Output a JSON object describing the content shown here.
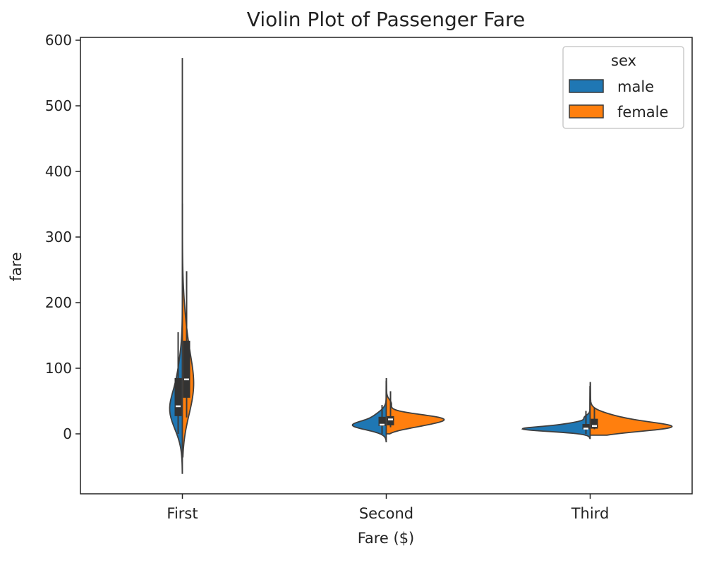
{
  "chart_data": {
    "type": "violin",
    "title": "Violin Plot of Passenger Fare",
    "xlabel": "Fare ($)",
    "ylabel": "fare",
    "categories": [
      "First",
      "Second",
      "Third"
    ],
    "ylim": [
      -90,
      605
    ],
    "yticks": [
      0,
      100,
      200,
      300,
      400,
      500,
      600
    ],
    "grid": false,
    "split": true,
    "legend": {
      "title": "sex",
      "placement": "top-right",
      "entries": [
        {
          "name": "male",
          "color": "#1f77b4"
        },
        {
          "name": "female",
          "color": "#ff7f0e"
        }
      ]
    },
    "series": [
      {
        "name": "male",
        "color": "#1f77b4",
        "groups": [
          {
            "category": "First",
            "min": 0,
            "q1": 27,
            "median": 42,
            "q3": 85,
            "max": 155,
            "kde_min": -60,
            "kde_max": 572
          },
          {
            "category": "Second",
            "min": 0,
            "q1": 12,
            "median": 14,
            "q3": 26,
            "max": 44,
            "kde_min": -12,
            "kde_max": 80
          },
          {
            "category": "Third",
            "min": 0,
            "q1": 7,
            "median": 8,
            "q3": 15,
            "max": 35,
            "kde_min": -7,
            "kde_max": 72
          }
        ]
      },
      {
        "name": "female",
        "color": "#ff7f0e",
        "groups": [
          {
            "category": "First",
            "min": 25,
            "q1": 55,
            "median": 83,
            "q3": 142,
            "max": 248,
            "kde_min": -35,
            "kde_max": 350
          },
          {
            "category": "Second",
            "min": 10,
            "q1": 13,
            "median": 22,
            "q3": 27,
            "max": 65,
            "kde_min": 0,
            "kde_max": 84
          },
          {
            "category": "Third",
            "min": 7,
            "q1": 8,
            "median": 12,
            "q3": 23,
            "max": 40,
            "kde_min": -2,
            "kde_max": 78
          }
        ]
      }
    ]
  }
}
